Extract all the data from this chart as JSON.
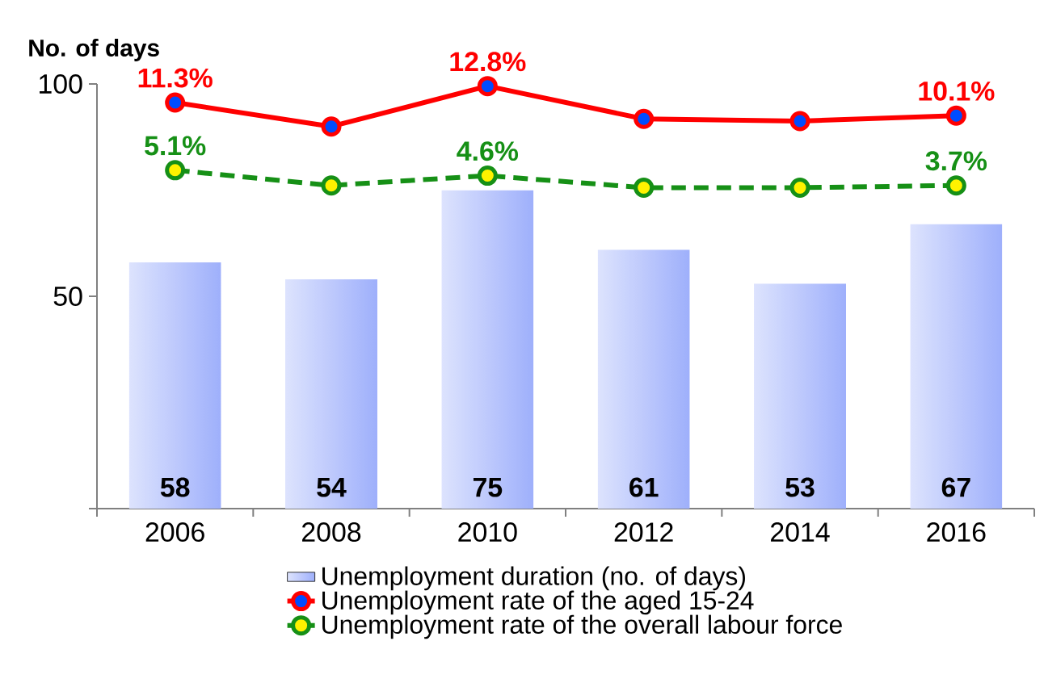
{
  "chart_data": {
    "type": "bar",
    "ylabel": "No. of days",
    "categories": [
      "2006",
      "2008",
      "2010",
      "2012",
      "2014",
      "2016"
    ],
    "ylim": [
      0,
      100
    ],
    "yticks": [
      {
        "value": 0,
        "label": null
      },
      50,
      100
    ],
    "y2lim": [
      -25.9,
      13.0
    ],
    "grid": false,
    "legend": "bottom",
    "series": [
      {
        "name": "Unemployment duration (no. of days)",
        "color": "#9fb0fb",
        "values": [
          58,
          54,
          75,
          61,
          53,
          67
        ],
        "value_labels": [
          "58",
          "54",
          "75",
          "61",
          "53",
          "67"
        ]
      },
      {
        "name": "Unemployment rate of the aged 15-24",
        "type": "line",
        "axis": "y2",
        "color": "#ff0000",
        "marker": "circle",
        "line_style": "solid",
        "values": [
          11.3,
          9.1,
          12.8,
          9.8,
          9.6,
          10.1
        ],
        "value_labels": [
          "11.3%",
          null,
          "12.8%",
          null,
          null,
          "10.1%"
        ]
      },
      {
        "name": "Unemployment rate of the overall labour force",
        "type": "line",
        "axis": "y2",
        "color": "#169016",
        "marker": "circle",
        "line_style": "dashed",
        "values": [
          5.1,
          3.7,
          4.6,
          3.5,
          3.5,
          3.7
        ],
        "value_labels": [
          "5.1%",
          null,
          "4.6%",
          null,
          null,
          "3.7%"
        ]
      }
    ]
  }
}
